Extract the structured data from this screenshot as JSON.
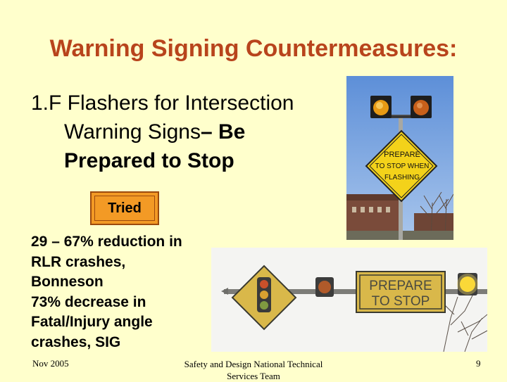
{
  "slide": {
    "title": "Warning Signing Countermeasures:",
    "item_line1": "1.F  Flashers for Intersection",
    "item_line2_plain": "Warning Signs",
    "item_line2_bold": "– Be",
    "item_line3_bold": "Prepared to Stop",
    "tried_label": "Tried",
    "stats": [
      "29 – 67% reduction in",
      "RLR crashes,",
      "Bonneson",
      "73% decrease in",
      "Fatal/Injury angle",
      "crashes, SIG"
    ]
  },
  "photo1": {
    "sign_lines": [
      "PREPARE",
      "TO STOP WHEN",
      "FLASHING"
    ]
  },
  "photo2": {
    "sign_lines": [
      "PREPARE",
      "TO  STOP"
    ]
  },
  "footer": {
    "date": "Nov 2005",
    "team_line1": "Safety and Design National Technical",
    "team_line2": "Services Team",
    "page_number": "9"
  },
  "colors": {
    "background": "#FFFFCC",
    "title": "#B8441C",
    "tried_box": "#F39A25"
  }
}
